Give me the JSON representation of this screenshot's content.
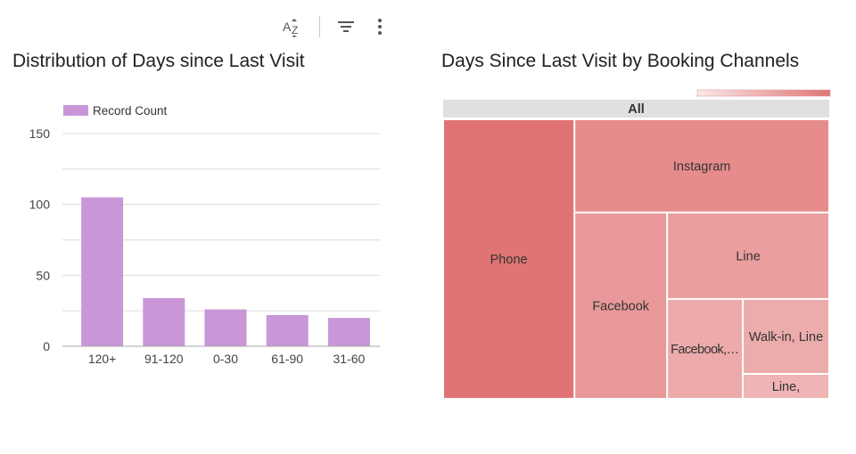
{
  "toolbar": {
    "buttons": [
      {
        "name": "sort-az-button",
        "icon": "sort-az-icon"
      },
      {
        "name": "filter-button",
        "icon": "filter-icon"
      },
      {
        "name": "more-options-button",
        "icon": "more-vert-icon"
      }
    ]
  },
  "chart_data": [
    {
      "type": "bar",
      "title": "Distribution of Days since Last Visit",
      "categories": [
        "120+",
        "91-120",
        "0-30",
        "61-90",
        "31-60"
      ],
      "series": [
        {
          "name": "Record Count",
          "values": [
            105,
            34,
            26,
            22,
            20
          ],
          "color": "#c997d8"
        }
      ],
      "ylim": [
        0,
        150
      ],
      "yticks": [
        0,
        50,
        100,
        150
      ],
      "grid": true,
      "legend": "top-left",
      "xlabel": "",
      "ylabel": ""
    },
    {
      "type": "treemap",
      "title": "Days Since Last Visit by Booking Channels",
      "root_label": "All",
      "legend": "color gradient, top-right",
      "color_scale": [
        "#fbe8e8",
        "#e07474"
      ],
      "nodes": [
        {
          "label": "Phone",
          "value": 34
        },
        {
          "label": "Instagram",
          "value": 22
        },
        {
          "label": "Facebook",
          "value": 16
        },
        {
          "label": "Line",
          "value": 13
        },
        {
          "label": "Facebook,…",
          "value": 7
        },
        {
          "label": "Walk-in, Line",
          "value": 6
        },
        {
          "label": "Line,",
          "value": 2
        }
      ]
    }
  ]
}
